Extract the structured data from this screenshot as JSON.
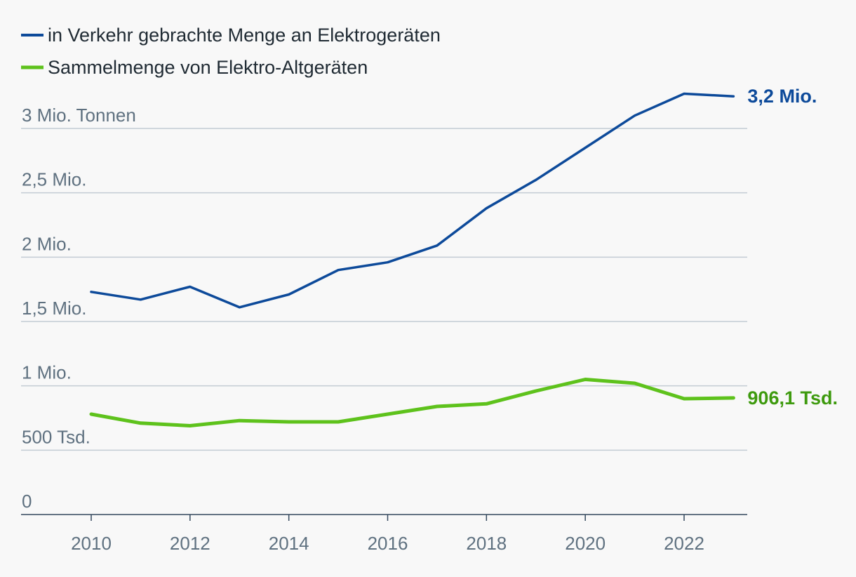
{
  "chart_data": {
    "type": "line",
    "x": [
      2010,
      2011,
      2012,
      2013,
      2014,
      2015,
      2016,
      2017,
      2018,
      2019,
      2020,
      2021,
      2022,
      2023
    ],
    "series": [
      {
        "name": "in Verkehr gebrachte Menge an Elektrogeräten",
        "color": "#0d4a9a",
        "values": [
          1.73,
          1.67,
          1.77,
          1.61,
          1.71,
          1.9,
          1.96,
          2.09,
          2.38,
          2.6,
          2.85,
          3.1,
          3.27,
          3.25
        ],
        "end_label": "3,2 Mio.",
        "end_label_color": "#0d4a9a"
      },
      {
        "name": "Sammelmenge von Elektro-Altgeräten",
        "color": "#5ec21c",
        "values": [
          0.78,
          0.71,
          0.69,
          0.73,
          0.72,
          0.72,
          0.78,
          0.84,
          0.86,
          0.96,
          1.05,
          1.02,
          0.9,
          0.906
        ],
        "end_label": "906,1 Tsd.",
        "end_label_color": "#3e9a0e"
      }
    ],
    "y_ticks": [
      {
        "value": 0,
        "label": "0"
      },
      {
        "value": 0.5,
        "label": "500 Tsd."
      },
      {
        "value": 1,
        "label": "1 Mio."
      },
      {
        "value": 1.5,
        "label": "1,5 Mio."
      },
      {
        "value": 2,
        "label": "2 Mio."
      },
      {
        "value": 2.5,
        "label": "2,5 Mio."
      },
      {
        "value": 3,
        "label": "3 Mio. Tonnen"
      }
    ],
    "x_ticks": [
      2010,
      2012,
      2014,
      2016,
      2018,
      2020,
      2022
    ],
    "ylim": [
      0,
      3
    ],
    "xlim": [
      2008.6,
      2023.4
    ],
    "grid": true,
    "legend_position": "top-left",
    "xlabel": "",
    "ylabel": ""
  }
}
